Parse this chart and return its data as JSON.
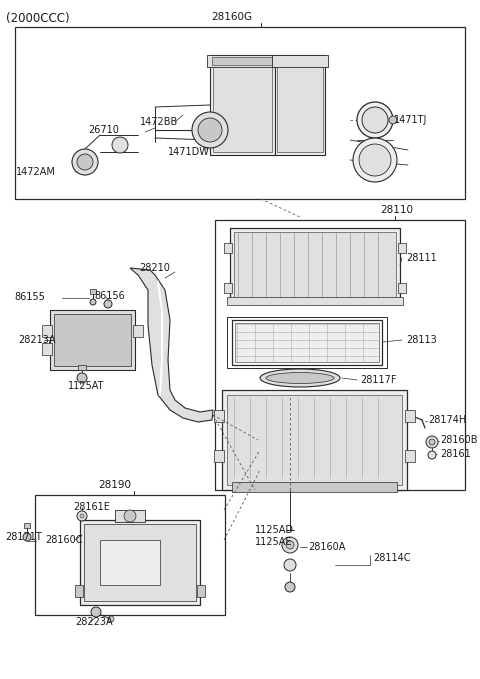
{
  "title": "(2000CCC)",
  "bg_color": "#ffffff",
  "lc": "#2a2a2a",
  "gray1": "#c8c8c8",
  "gray2": "#e0e0e0",
  "gray3": "#eeeeee",
  "box1_label": "28160G",
  "box2_label": "28110",
  "box3_label": "28190",
  "figsize": [
    4.8,
    6.79
  ],
  "dpi": 100
}
